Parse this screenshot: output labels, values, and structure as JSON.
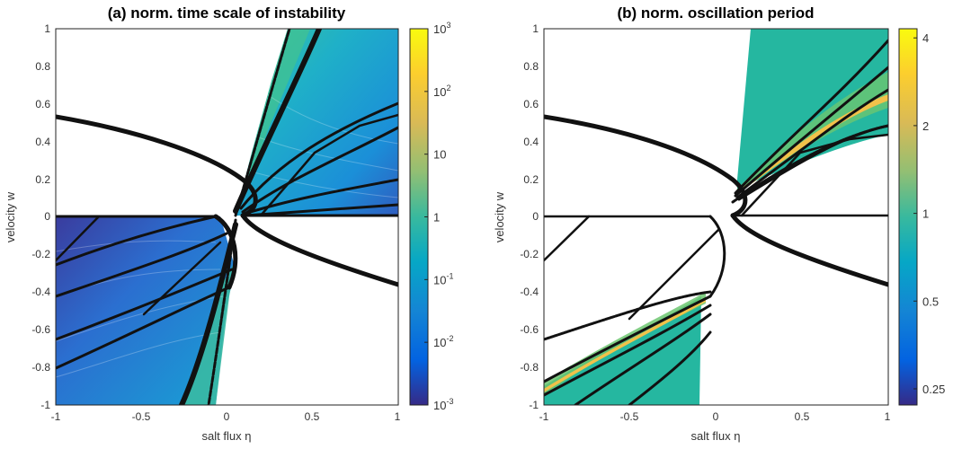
{
  "chart_data": [
    {
      "type": "heatmap",
      "panel": "a",
      "title": "(a) norm. time scale of instability",
      "xlabel": "salt flux η",
      "ylabel": "velocity w",
      "xlim": [
        -1,
        1
      ],
      "ylim": [
        -1,
        1
      ],
      "xticks": [
        "-1",
        "-0.5",
        "0",
        "0.5",
        "1"
      ],
      "yticks": [
        "1",
        "0.8",
        "0.6",
        "0.4",
        "0.2",
        "0",
        "-0.2",
        "-0.4",
        "-0.6",
        "-0.8",
        "-1"
      ],
      "colorbar": {
        "scale": "log",
        "range": [
          0.001,
          1000
        ],
        "ticks": [
          {
            "value": 1000,
            "base": "10",
            "exp": "3"
          },
          {
            "value": 100,
            "base": "10",
            "exp": "2"
          },
          {
            "value": 10,
            "base": "10",
            "exp": ""
          },
          {
            "value": 1,
            "base": "1",
            "exp": ""
          },
          {
            "value": 0.1,
            "base": "10",
            "exp": "-1"
          },
          {
            "value": 0.01,
            "base": "10",
            "exp": "-2"
          },
          {
            "value": 0.001,
            "base": "10",
            "exp": "-3"
          }
        ]
      },
      "grid": false
    },
    {
      "type": "heatmap",
      "panel": "b",
      "title": "(b) norm. oscillation period",
      "xlabel": "salt flux η",
      "ylabel": "velocity w",
      "xlim": [
        -1,
        1
      ],
      "ylim": [
        -1,
        1
      ],
      "xticks": [
        "-1",
        "-0.5",
        "0",
        "0.5",
        "1"
      ],
      "yticks": [
        "1",
        "0.8",
        "0.6",
        "0.4",
        "0.2",
        "0",
        "-0.2",
        "-0.4",
        "-0.6",
        "-0.8",
        "-1"
      ],
      "colorbar": {
        "scale": "log",
        "range": [
          0.22,
          4.3
        ],
        "ticks": [
          {
            "value": 4,
            "label": "4"
          },
          {
            "value": 2,
            "label": "2"
          },
          {
            "value": 1,
            "label": "1"
          },
          {
            "value": 0.5,
            "label": "0.5"
          },
          {
            "value": 0.25,
            "label": "0.25"
          }
        ]
      },
      "grid": false
    }
  ],
  "colors": {
    "parula_dark": "#352a87",
    "parula_blue": "#0f5cdd",
    "parula_cyan": "#1aa5d3",
    "parula_teal": "#21b3a6",
    "parula_green": "#6cc670",
    "parula_orange": "#f9b43e",
    "parula_yellow": "#f9fb0e",
    "curve": "#111111"
  }
}
